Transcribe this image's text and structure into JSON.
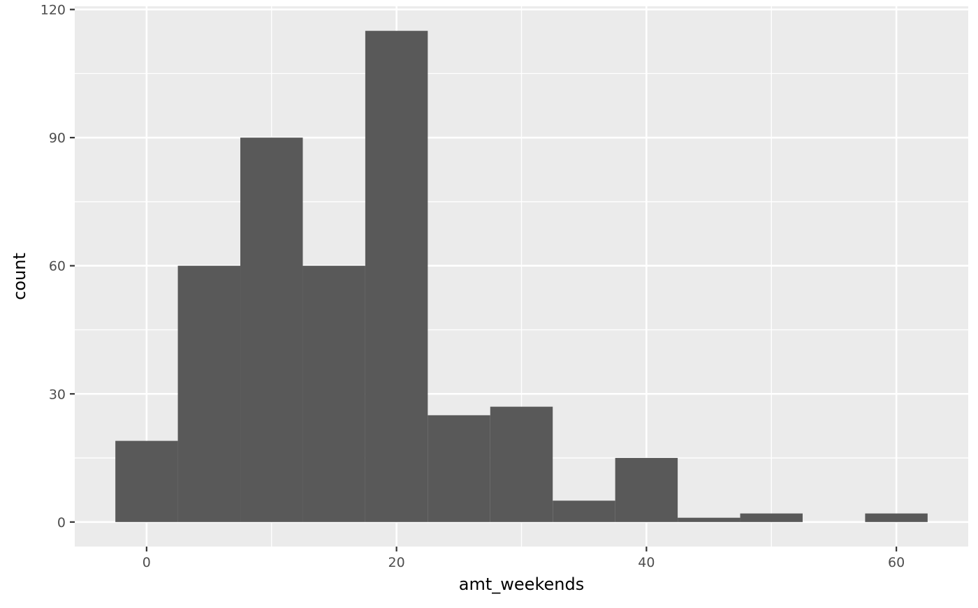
{
  "chart_data": {
    "type": "bar",
    "title": "",
    "xlabel": "amt_weekends",
    "ylabel": "count",
    "xlim": [
      -5.75,
      65.75
    ],
    "ylim": [
      -5.75,
      120.75
    ],
    "x_ticks": [
      0,
      20,
      40,
      60
    ],
    "x_minor_ticks": [
      10,
      30,
      50
    ],
    "y_ticks": [
      0,
      30,
      60,
      90,
      120
    ],
    "y_minor_ticks": [
      15,
      45,
      75,
      105
    ],
    "bin_width": 5,
    "bins": [
      {
        "x": 0,
        "count": 19
      },
      {
        "x": 5,
        "count": 60
      },
      {
        "x": 10,
        "count": 90
      },
      {
        "x": 15,
        "count": 60
      },
      {
        "x": 20,
        "count": 115
      },
      {
        "x": 25,
        "count": 25
      },
      {
        "x": 30,
        "count": 27
      },
      {
        "x": 35,
        "count": 5
      },
      {
        "x": 40,
        "count": 15
      },
      {
        "x": 45,
        "count": 1
      },
      {
        "x": 50,
        "count": 2
      },
      {
        "x": 55,
        "count": 0
      },
      {
        "x": 60,
        "count": 2
      }
    ],
    "grid": true,
    "colors": {
      "panel_background": "#ebebeb",
      "bar_fill": "#595959",
      "grid": "#ffffff"
    }
  }
}
